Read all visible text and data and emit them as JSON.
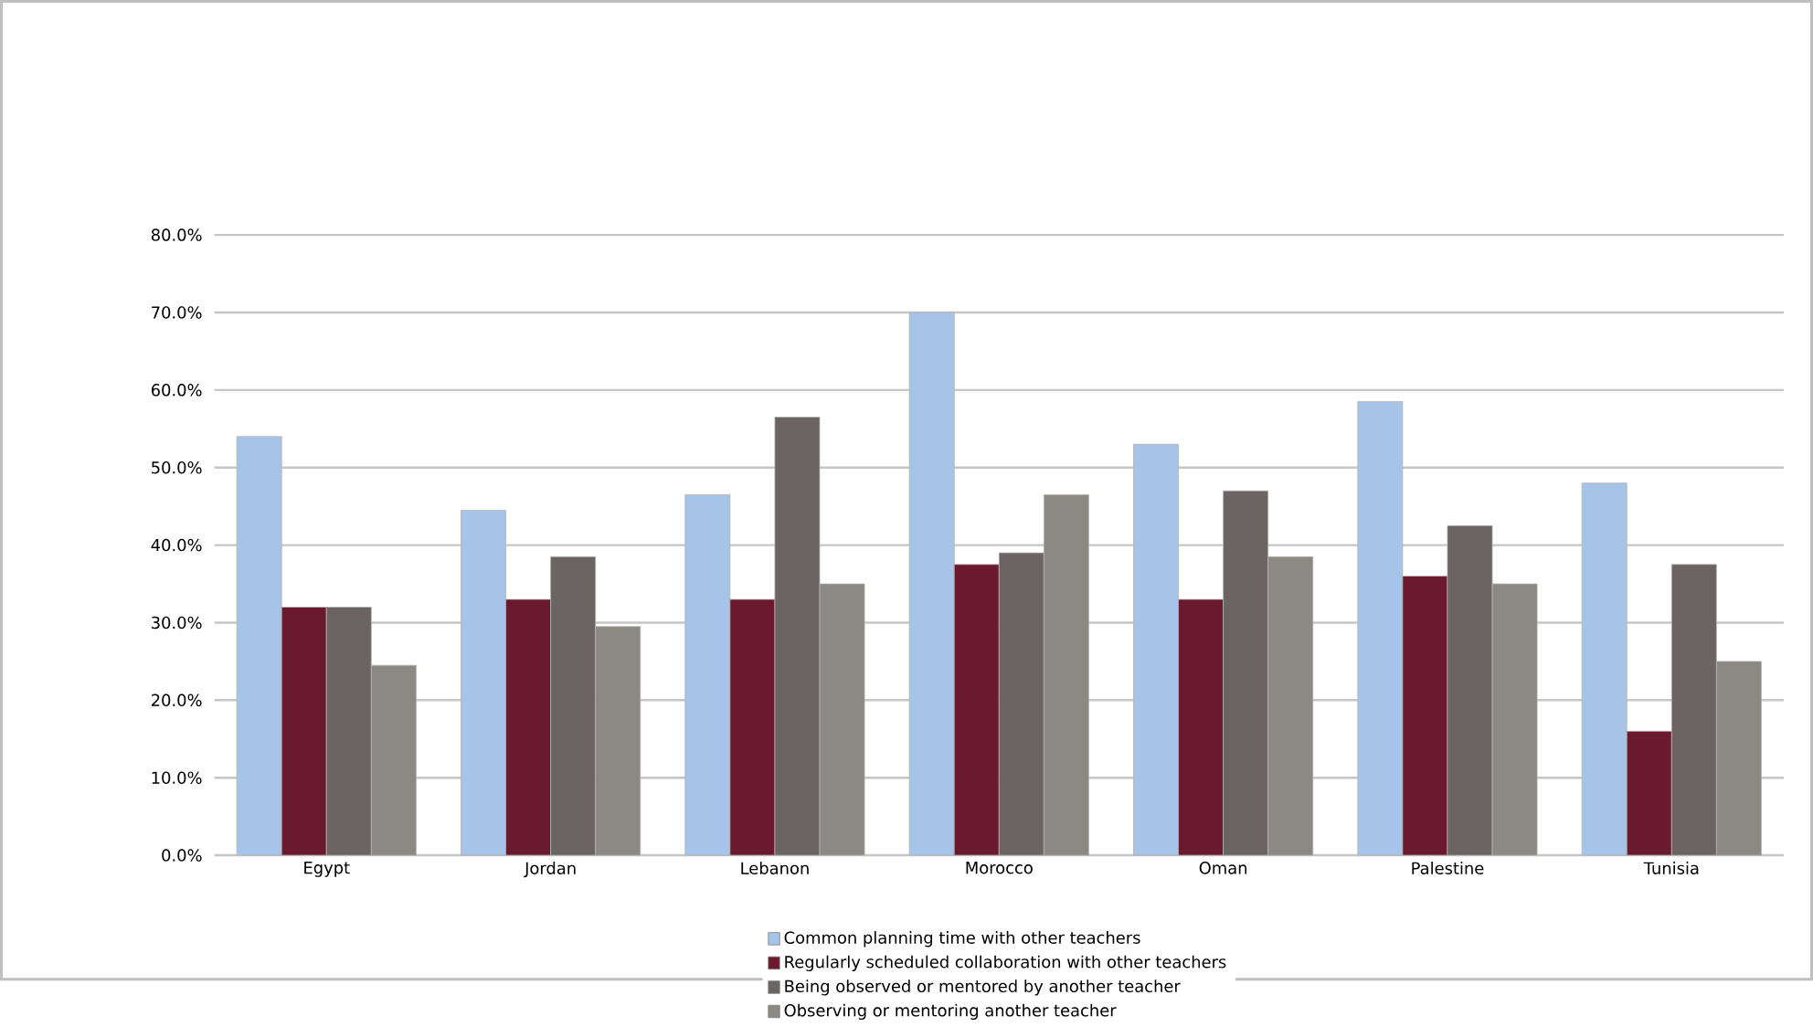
{
  "chart_data": {
    "type": "bar",
    "categories": [
      "Egypt",
      "Jordan",
      "Lebanon",
      "Morocco",
      "Oman",
      "Palestine",
      "Tunisia"
    ],
    "series": [
      {
        "name": "Common planning time with other teachers",
        "color": "#a6c4e8",
        "values": [
          54,
          44.5,
          46.5,
          70,
          53,
          58.5,
          48
        ]
      },
      {
        "name": "Regularly scheduled collaboration with other teachers",
        "color": "#6b1a2e",
        "values": [
          32,
          33,
          33,
          37.5,
          33,
          36,
          16
        ]
      },
      {
        "name": "Being observed or mentored by another teacher",
        "color": "#6b6462",
        "values": [
          32,
          38.5,
          56.5,
          39,
          47,
          42.5,
          37.5
        ]
      },
      {
        "name": "Observing or mentoring another teacher",
        "color": "#8c8882",
        "values": [
          24.5,
          29.5,
          35,
          46.5,
          38.5,
          35,
          25
        ]
      }
    ],
    "ylim": [
      0,
      80
    ],
    "yticks": [
      {
        "value": 0,
        "label": "0.0%"
      },
      {
        "value": 10,
        "label": "10.0%"
      },
      {
        "value": 20,
        "label": "20.0%"
      },
      {
        "value": 30,
        "label": "30.0%"
      },
      {
        "value": 40,
        "label": "40.0%"
      },
      {
        "value": 50,
        "label": "50.0%"
      },
      {
        "value": 60,
        "label": "60.0%"
      },
      {
        "value": 70,
        "label": "70.0%"
      },
      {
        "value": 80,
        "label": "80.0%"
      }
    ],
    "grid": "y",
    "legend": "bottom"
  }
}
